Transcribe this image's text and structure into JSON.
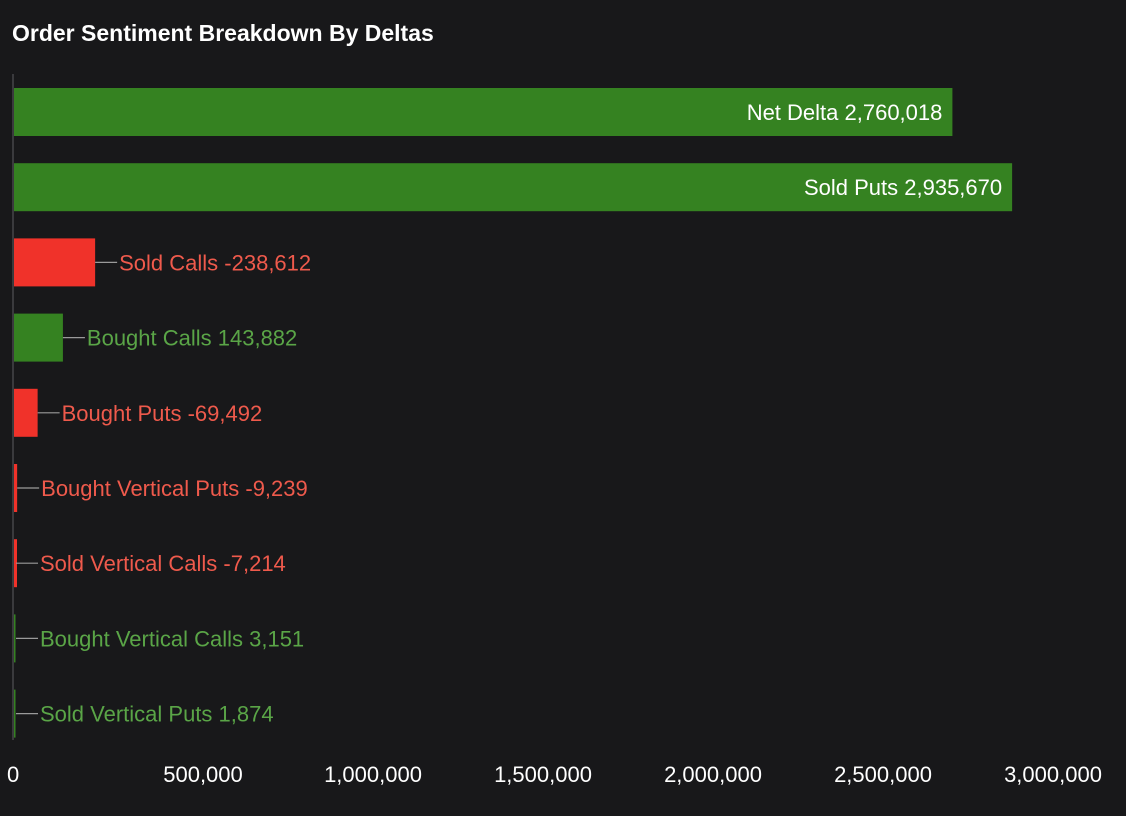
{
  "chart_data": {
    "type": "bar",
    "orientation": "horizontal",
    "title": "Order Sentiment Breakdown By Deltas",
    "xlim": [
      0,
      3000000
    ],
    "grid": false,
    "colors": {
      "positive": "#358221",
      "negative": "#f0322a",
      "positive_label": "#5aa547",
      "negative_label": "#ef5a4c",
      "inside_label": "#ffffff",
      "axis": "#3a3a3d"
    },
    "categories": [
      "Net Delta",
      "Sold Puts",
      "Sold Calls",
      "Bought Calls",
      "Bought Puts",
      "Bought Vertical Puts",
      "Sold Vertical Calls",
      "Bought Vertical Calls",
      "Sold Vertical Puts"
    ],
    "values": [
      2760018,
      2935670,
      -238612,
      143882,
      -69492,
      -9239,
      -7214,
      3151,
      1874
    ],
    "labels": [
      "Net Delta 2,760,018",
      "Sold Puts 2,935,670",
      "Sold Calls -238,612",
      "Bought Calls 143,882",
      "Bought Puts -69,492",
      "Bought Vertical Puts -9,239",
      "Sold Vertical Calls -7,214",
      "Bought Vertical Calls 3,151",
      "Sold Vertical Puts 1,874"
    ],
    "x_ticks": [
      0,
      500000,
      1000000,
      1500000,
      2000000,
      2500000,
      3000000
    ],
    "x_tick_labels": [
      "0",
      "500,000",
      "1,000,000",
      "1,500,000",
      "2,000,000",
      "2,500,000",
      "3,000,000"
    ]
  }
}
